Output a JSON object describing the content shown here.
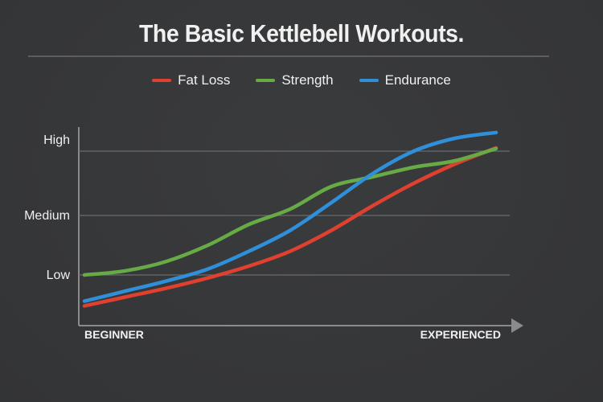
{
  "chart_data": {
    "type": "line",
    "title": "The Basic Kettlebell Workouts.",
    "xlabel": "",
    "ylabel": "",
    "x_tick_labels": [
      "BEGINNER",
      "EXPERIENCED"
    ],
    "y_tick_labels": [
      "Low",
      "Medium",
      "High"
    ],
    "y_tick_values": [
      1,
      2,
      3
    ],
    "x": [
      0,
      1,
      2,
      3,
      4,
      5,
      6,
      7,
      8,
      9,
      10
    ],
    "ylim": [
      0,
      3.4
    ],
    "grid": true,
    "legend": "top",
    "series": [
      {
        "name": "Fat Loss",
        "color": "#e0402f",
        "values": [
          0.48,
          0.63,
          0.78,
          0.95,
          1.15,
          1.4,
          1.75,
          2.15,
          2.5,
          2.8,
          3.05
        ]
      },
      {
        "name": "Strength",
        "color": "#66ab45",
        "values": [
          1.0,
          1.07,
          1.23,
          1.5,
          1.85,
          2.1,
          2.45,
          2.6,
          2.75,
          2.85,
          3.04
        ]
      },
      {
        "name": "Endurance",
        "color": "#2f8fd8",
        "values": [
          0.56,
          0.73,
          0.9,
          1.1,
          1.4,
          1.75,
          2.2,
          2.65,
          3.0,
          3.2,
          3.29
        ]
      }
    ]
  }
}
